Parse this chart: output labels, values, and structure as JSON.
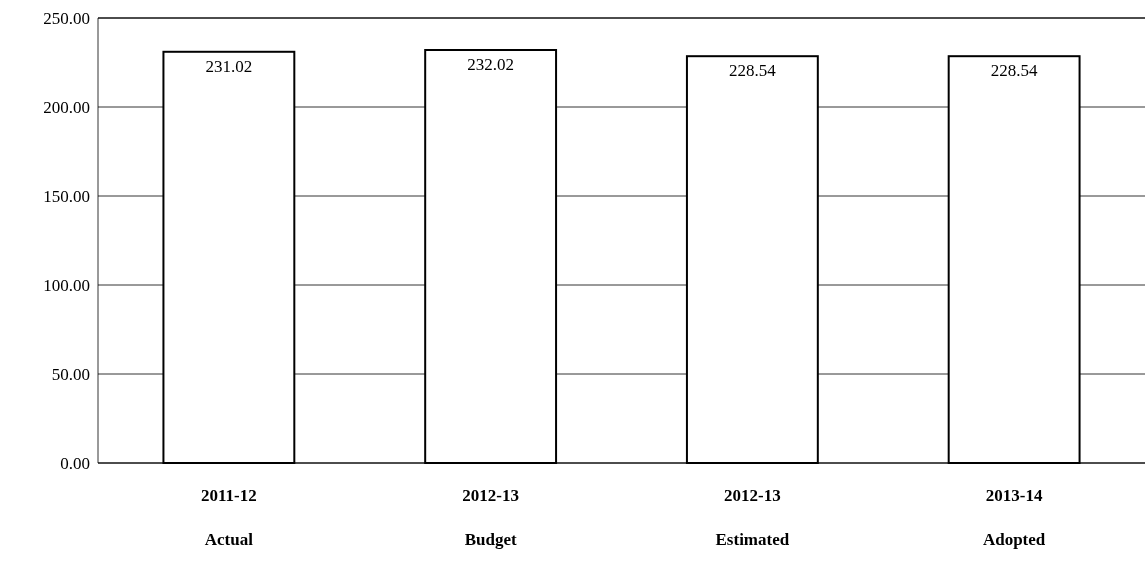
{
  "chart_data": {
    "type": "bar",
    "categories": [
      "2011-12\nActual",
      "2012-13\nBudget",
      "2012-13\nEstimated",
      "2013-14\nAdopted"
    ],
    "values": [
      231.02,
      232.02,
      228.54,
      228.54
    ],
    "color": "#ffffff",
    "ylim": [
      0,
      250
    ],
    "yticks": [
      {
        "value": 0,
        "label": "0.00"
      },
      {
        "value": 50,
        "label": "50.00"
      },
      {
        "value": 100,
        "label": "100.00"
      },
      {
        "value": 150,
        "label": "150.00"
      },
      {
        "value": 200,
        "label": "200.00"
      },
      {
        "value": 250,
        "label": "250.00"
      }
    ],
    "grid": "y",
    "data_labels": true
  }
}
